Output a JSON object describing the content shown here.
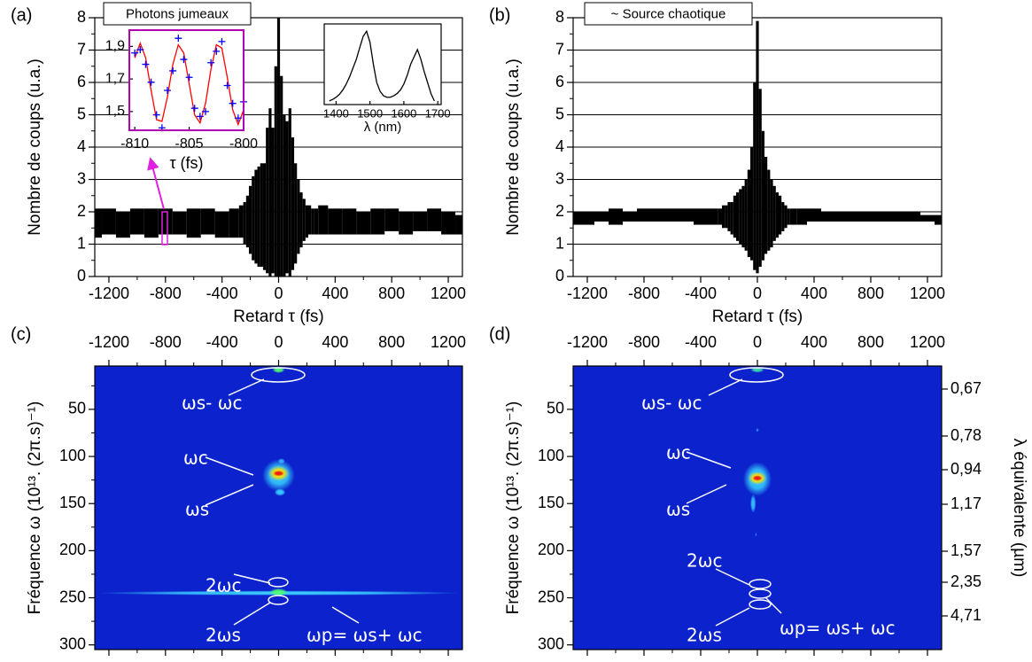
{
  "chart_data": [
    {
      "type": "band",
      "panel": "(a)",
      "xlabel": "Retard τ (fs)",
      "ylabel": "Nombre de coups (u.a.)",
      "color": "#000000",
      "grid": true,
      "x": [
        -1300,
        -1200,
        -1100,
        -1000,
        -900,
        -800,
        -700,
        -600,
        -500,
        -400,
        -300,
        -260,
        -240,
        -220,
        -200,
        -180,
        -160,
        -140,
        -120,
        -100,
        -80,
        -60,
        -40,
        -20,
        0,
        20,
        40,
        60,
        80,
        100,
        120,
        140,
        160,
        180,
        200,
        220,
        240,
        260,
        300,
        400,
        500,
        600,
        700,
        800,
        900,
        1000,
        1100,
        1200,
        1300
      ],
      "low": [
        1.2,
        1.3,
        1.2,
        1.3,
        1.2,
        1.3,
        1.3,
        1.2,
        1.3,
        1.2,
        1.2,
        1.2,
        1.0,
        0.9,
        0.7,
        0.5,
        0.4,
        0.3,
        0.3,
        0.2,
        0.1,
        0.0,
        0.1,
        0.0,
        0.0,
        0.0,
        0.0,
        0.1,
        0.0,
        0.2,
        0.4,
        0.7,
        0.9,
        1.1,
        1.2,
        1.3,
        1.3,
        1.3,
        1.3,
        1.3,
        1.3,
        1.3,
        1.3,
        1.4,
        1.3,
        1.4,
        1.4,
        1.3,
        1.3
      ],
      "high": [
        2.1,
        2.1,
        2.0,
        2.1,
        2.1,
        2.1,
        2.0,
        2.1,
        2.1,
        2.0,
        2.1,
        2.2,
        2.3,
        2.5,
        2.8,
        3.1,
        3.3,
        3.4,
        3.5,
        3.5,
        4.6,
        5.2,
        4.6,
        6.5,
        8.0,
        6.2,
        5.0,
        4.8,
        5.2,
        4.3,
        3.5,
        3.0,
        2.6,
        2.4,
        2.2,
        2.2,
        2.1,
        2.1,
        2.2,
        2.1,
        2.1,
        2.0,
        2.1,
        2.1,
        2.0,
        2.0,
        2.1,
        2.0,
        1.9
      ],
      "xlim": [
        -1300,
        1300
      ],
      "xticks": [
        -1200,
        -800,
        -400,
        0,
        400,
        800,
        1200
      ],
      "ylim": [
        0,
        8
      ],
      "yticks": [
        0,
        1,
        2,
        3,
        4,
        5,
        6,
        7,
        8
      ]
    },
    {
      "type": "line",
      "title": "Photons jumeaux",
      "xlabel": "τ (fs)",
      "frame_color": "#b000b0",
      "x": [
        -810,
        -809.5,
        -809,
        -808.5,
        -808,
        -807.5,
        -807,
        -806.5,
        -806,
        -805.5,
        -805,
        -804.5,
        -804,
        -803.5,
        -803,
        -802.5,
        -802,
        -801.5,
        -801,
        -800.5,
        -800
      ],
      "series": [
        {
          "color": "#ff0000",
          "values": [
            1.83,
            1.92,
            1.83,
            1.63,
            1.45,
            1.44,
            1.59,
            1.79,
            1.91,
            1.86,
            1.67,
            1.48,
            1.43,
            1.55,
            1.76,
            1.91,
            1.89,
            1.71,
            1.51,
            1.42,
            1.51
          ]
        },
        {
          "color": "#0000ff",
          "marker": "+",
          "values": [
            1.86,
            1.88,
            1.79,
            1.68,
            1.48,
            1.4,
            1.63,
            1.75,
            1.95,
            1.82,
            1.71,
            1.52,
            1.47,
            1.5,
            1.8,
            1.87,
            1.93,
            1.66,
            1.55,
            1.46,
            1.56
          ]
        }
      ],
      "xlim": [
        -810.5,
        -800
      ],
      "xticks": [
        -810,
        -805,
        -800
      ],
      "ylim": [
        1.385,
        2.0
      ],
      "yticks": [
        {
          "value": 1.5,
          "label": "1,5"
        },
        {
          "value": 1.7,
          "label": "1,7"
        },
        {
          "value": 1.9,
          "label": "1,9"
        }
      ]
    },
    {
      "type": "line",
      "xlabel": "λ (nm)",
      "color": "#000000",
      "x": [
        1380,
        1390,
        1400,
        1410,
        1420,
        1430,
        1440,
        1450,
        1460,
        1470,
        1480,
        1490,
        1500,
        1510,
        1520,
        1530,
        1540,
        1550,
        1560,
        1570,
        1580,
        1590,
        1600,
        1610,
        1620,
        1630,
        1640,
        1650,
        1660,
        1670,
        1680,
        1690
      ],
      "values": [
        0.05,
        0.07,
        0.1,
        0.14,
        0.2,
        0.28,
        0.38,
        0.5,
        0.62,
        0.78,
        0.93,
        1.0,
        0.85,
        0.55,
        0.3,
        0.18,
        0.12,
        0.1,
        0.1,
        0.12,
        0.15,
        0.2,
        0.28,
        0.4,
        0.55,
        0.65,
        0.75,
        0.62,
        0.45,
        0.3,
        0.15,
        0.05
      ],
      "xlim": [
        1365,
        1710
      ],
      "xticks": [
        1400,
        1500,
        1600,
        1700
      ],
      "ylim": [
        0,
        1.1
      ]
    },
    {
      "type": "band",
      "panel": "(b)",
      "title": "~ Source chaotique",
      "xlabel": "Retard τ (fs)",
      "ylabel": "Nombre de coups (u.a.)",
      "color": "#000000",
      "grid": true,
      "x": [
        -1300,
        -1200,
        -1100,
        -1000,
        -900,
        -800,
        -700,
        -600,
        -500,
        -400,
        -300,
        -260,
        -240,
        -220,
        -200,
        -180,
        -160,
        -140,
        -120,
        -100,
        -80,
        -60,
        -40,
        -20,
        0,
        20,
        40,
        60,
        80,
        100,
        120,
        140,
        160,
        180,
        200,
        220,
        240,
        260,
        300,
        400,
        500,
        600,
        700,
        800,
        900,
        1000,
        1100,
        1200,
        1300
      ],
      "low": [
        1.6,
        1.6,
        1.7,
        1.6,
        1.7,
        1.7,
        1.7,
        1.7,
        1.7,
        1.6,
        1.6,
        1.6,
        1.5,
        1.5,
        1.4,
        1.3,
        1.2,
        1.1,
        1.0,
        0.9,
        0.8,
        0.6,
        0.5,
        0.2,
        0.1,
        0.3,
        0.5,
        0.7,
        0.8,
        0.9,
        1.1,
        1.2,
        1.3,
        1.4,
        1.5,
        1.6,
        1.6,
        1.6,
        1.6,
        1.7,
        1.7,
        1.7,
        1.7,
        1.7,
        1.7,
        1.7,
        1.7,
        1.7,
        1.6
      ],
      "high": [
        2.0,
        2.0,
        2.0,
        2.1,
        2.0,
        2.1,
        2.1,
        2.1,
        2.1,
        2.1,
        2.1,
        2.1,
        2.2,
        2.2,
        2.3,
        2.3,
        2.5,
        2.6,
        2.7,
        2.8,
        3.0,
        3.3,
        4.0,
        6.0,
        7.9,
        5.8,
        4.5,
        3.7,
        3.3,
        3.0,
        2.8,
        2.6,
        2.5,
        2.3,
        2.2,
        2.1,
        2.1,
        2.1,
        2.1,
        2.1,
        2.0,
        2.0,
        2.0,
        2.0,
        2.0,
        2.0,
        2.0,
        1.9,
        1.9
      ],
      "xlim": [
        -1300,
        1300
      ],
      "xticks": [
        -1200,
        -800,
        -400,
        0,
        400,
        800,
        1200
      ],
      "ylim": [
        0,
        8
      ],
      "yticks": [
        0,
        1,
        2,
        3,
        4,
        5,
        6,
        7,
        8
      ]
    },
    {
      "type": "heatmap",
      "panel": "(c)",
      "ylabel": "Fréquence ω (10¹³. (2π.s)⁻¹)",
      "background": "#0b22cc",
      "xlim": [
        -1300,
        1300
      ],
      "xticks": [
        -1200,
        -800,
        -400,
        0,
        400,
        800,
        1200
      ],
      "ylim": [
        305,
        4
      ],
      "yticks": [
        50,
        100,
        150,
        200,
        250,
        300
      ],
      "spots": [
        {
          "x": 0,
          "y": 245,
          "width": 2600,
          "height": 5,
          "color": "#3cd2ff"
        },
        {
          "x": 0,
          "y": 244,
          "width": 130,
          "height": 8,
          "color": "#50ff70"
        },
        {
          "x": 0,
          "y": 8,
          "width": 90,
          "height": 7,
          "color": "#50ff70"
        },
        {
          "x": 0,
          "y": 120,
          "width": 230,
          "height": 34,
          "color": "#36d0ff"
        },
        {
          "x": 0,
          "y": 118,
          "width": 150,
          "height": 16,
          "color": "#ffe000"
        },
        {
          "x": 0,
          "y": 118,
          "width": 80,
          "height": 6,
          "color": "#ee1010"
        },
        {
          "x": 10,
          "y": 138,
          "width": 80,
          "height": 8,
          "color": "#36d0ff"
        },
        {
          "x": 20,
          "y": 105,
          "width": 50,
          "height": 6,
          "color": "#36b0ff"
        }
      ],
      "annotations": [
        "ωs- ωc",
        "ωc",
        "ωs",
        "2ωc",
        "2ωs",
        "ωp= ωs+ ωc"
      ]
    },
    {
      "type": "heatmap",
      "panel": "(d)",
      "ylabel": "Fréquence ω (10¹³. (2π.s)⁻¹)",
      "y2label": "λ équivalente (µm)",
      "background": "#0b22cc",
      "xlim": [
        -1300,
        1300
      ],
      "xticks": [
        -1200,
        -800,
        -400,
        0,
        400,
        800,
        1200
      ],
      "ylim": [
        305,
        4
      ],
      "yticks": [
        50,
        100,
        150,
        200,
        250,
        300
      ],
      "y2ticks": [
        {
          "value": 0.67,
          "label": "0,67"
        },
        {
          "value": 0.78,
          "label": "0,78"
        },
        {
          "value": 0.94,
          "label": "0,94"
        },
        {
          "value": 1.17,
          "label": "1,17"
        },
        {
          "value": 1.57,
          "label": "1,57"
        },
        {
          "value": 2.35,
          "label": "2,35"
        },
        {
          "value": 4.71,
          "label": "4,71"
        }
      ],
      "spots": [
        {
          "x": 0,
          "y": 8,
          "width": 100,
          "height": 6,
          "color": "#40e0b0"
        },
        {
          "x": 0,
          "y": 124,
          "width": 200,
          "height": 36,
          "color": "#36d0ff"
        },
        {
          "x": 0,
          "y": 123,
          "width": 130,
          "height": 14,
          "color": "#ffe000"
        },
        {
          "x": 0,
          "y": 123,
          "width": 70,
          "height": 6,
          "color": "#ee1010"
        },
        {
          "x": -30,
          "y": 150,
          "width": 40,
          "height": 20,
          "color": "#36c0ff"
        },
        {
          "x": 0,
          "y": 72,
          "width": 20,
          "height": 4,
          "color": "#2a90ff"
        },
        {
          "x": -10,
          "y": 183,
          "width": 12,
          "height": 4,
          "color": "#2a90ff"
        }
      ],
      "annotations": [
        "ωs- ωc",
        "ωc",
        "ωs",
        "2ωc",
        "2ωs",
        "ωp= ωs+ ωc"
      ]
    }
  ]
}
